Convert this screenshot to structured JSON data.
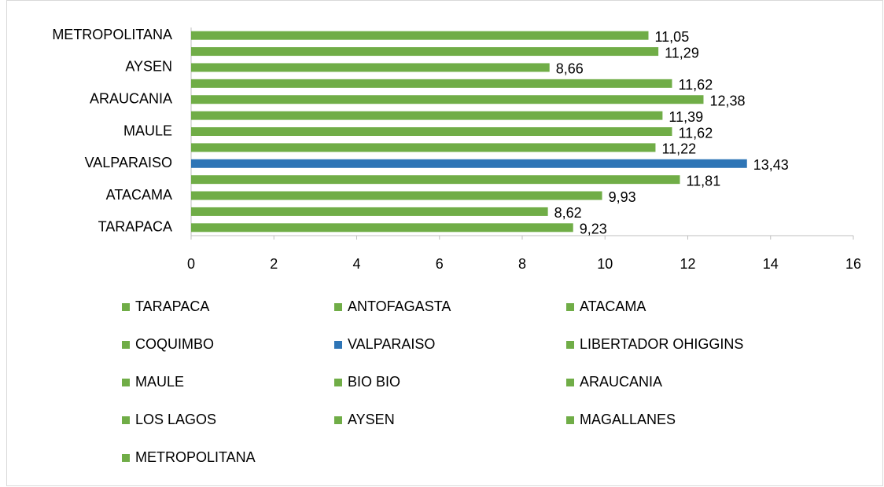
{
  "chart_data": {
    "type": "barh",
    "categories": [
      "TARAPACA",
      null,
      "ATACAMA",
      null,
      "VALPARAISO",
      null,
      "MAULE",
      null,
      "ARAUCANIA",
      null,
      "AYSEN",
      null,
      "METROPOLITANA"
    ],
    "values": [
      9.23,
      8.62,
      9.93,
      11.81,
      13.43,
      11.22,
      11.62,
      11.39,
      12.38,
      11.62,
      8.66,
      11.29,
      11.05
    ],
    "value_labels": [
      "9,23",
      "8,62",
      "9,93",
      "11,81",
      "13,43",
      "11,22",
      "11,62",
      "11,39",
      "12,38",
      "11,62",
      "8,66",
      "11,29",
      "11,05"
    ],
    "colors": [
      "#70ad47",
      "#70ad47",
      "#70ad47",
      "#70ad47",
      "#2e75b6",
      "#70ad47",
      "#70ad47",
      "#70ad47",
      "#70ad47",
      "#70ad47",
      "#70ad47",
      "#70ad47",
      "#70ad47"
    ],
    "legend": [
      "TARAPACA",
      "ANTOFAGASTA",
      "ATACAMA",
      "COQUIMBO",
      "VALPARAISO",
      "LIBERTADOR OHIGGINS",
      "MAULE",
      "BIO BIO",
      "ARAUCANIA",
      "LOS LAGOS",
      "AYSEN",
      "MAGALLANES",
      "METROPOLITANA"
    ],
    "xlim": [
      0,
      16
    ],
    "xticks": [
      0,
      2,
      4,
      6,
      8,
      10,
      12,
      14,
      16
    ],
    "grid": false,
    "legend_position": "bottom"
  }
}
